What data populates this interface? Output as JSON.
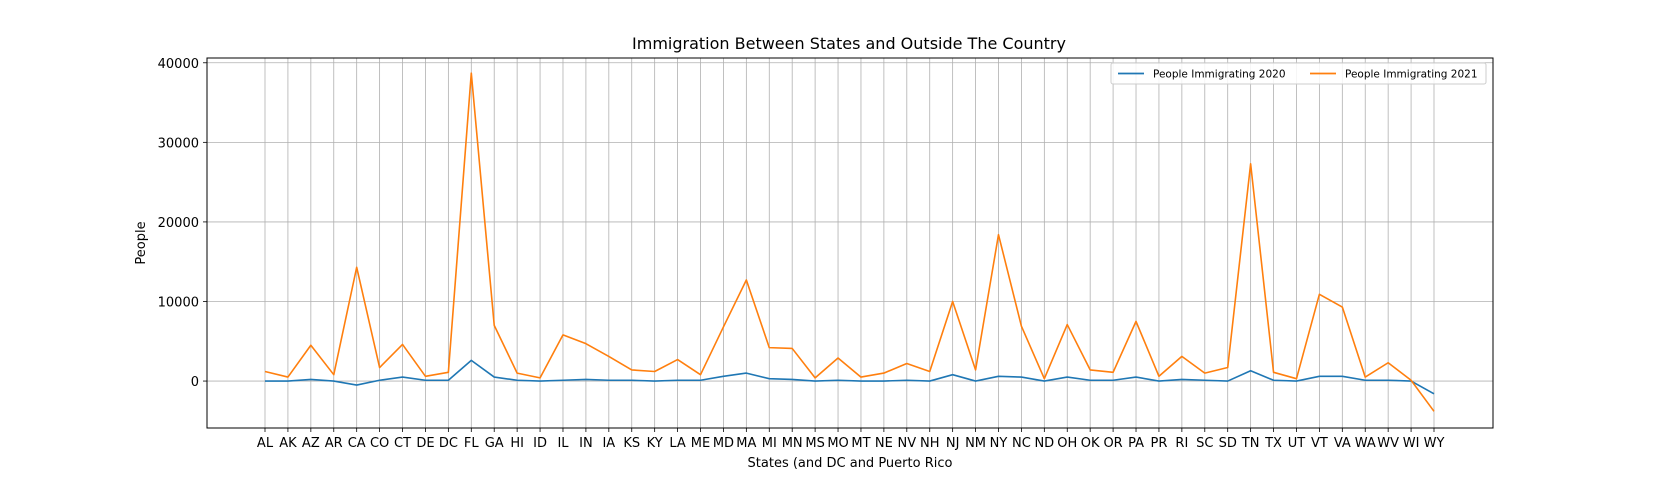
{
  "chart_data": {
    "type": "line",
    "title": "Immigration Between States and Outside The Country",
    "xlabel": "States (and DC and Puerto Rico",
    "ylabel": "People",
    "categories": [
      "AL",
      "AK",
      "AZ",
      "AR",
      "CA",
      "CO",
      "CT",
      "DE",
      "DC",
      "FL",
      "GA",
      "HI",
      "ID",
      "IL",
      "IN",
      "IA",
      "KS",
      "KY",
      "LA",
      "ME",
      "MD",
      "MA",
      "MI",
      "MN",
      "MS",
      "MO",
      "MT",
      "NE",
      "NV",
      "NH",
      "NJ",
      "NM",
      "NY",
      "NC",
      "ND",
      "OH",
      "OK",
      "OR",
      "PA",
      "PR",
      "RI",
      "SC",
      "SD",
      "TN",
      "TX",
      "UT",
      "VT",
      "VA",
      "WA",
      "WV",
      "WI",
      "WY"
    ],
    "ylim": [
      -5900,
      40600
    ],
    "yticks": [
      0,
      10000,
      20000,
      30000,
      40000
    ],
    "grid": true,
    "legend_position": "top-right",
    "series": [
      {
        "name": "People Immigrating 2020",
        "color": "#1f77b4",
        "values": [
          0,
          0,
          200,
          0,
          -500,
          100,
          500,
          100,
          100,
          2600,
          500,
          100,
          0,
          100,
          200,
          100,
          100,
          0,
          100,
          100,
          600,
          1000,
          300,
          200,
          0,
          100,
          0,
          0,
          100,
          0,
          800,
          0,
          600,
          500,
          0,
          500,
          100,
          100,
          500,
          0,
          200,
          100,
          0,
          1300,
          100,
          0,
          600,
          600,
          100,
          100,
          0,
          -1600
        ]
      },
      {
        "name": "People Immigrating 2021",
        "color": "#ff7f0e",
        "values": [
          1200,
          500,
          4500,
          800,
          14300,
          1700,
          4600,
          600,
          1100,
          38700,
          7000,
          1000,
          400,
          5800,
          4700,
          3100,
          1400,
          1200,
          2700,
          800,
          6800,
          12700,
          4200,
          4100,
          400,
          2900,
          500,
          1000,
          2200,
          1200,
          10000,
          1400,
          18400,
          6900,
          300,
          7100,
          1400,
          1100,
          7500,
          600,
          3100,
          1000,
          1700,
          27300,
          1100,
          300,
          10900,
          9300,
          500,
          2300,
          100,
          -3800
        ]
      }
    ]
  }
}
